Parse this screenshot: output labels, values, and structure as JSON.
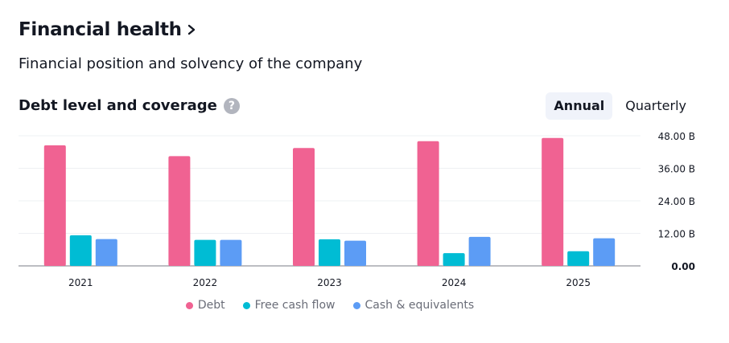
{
  "header": {
    "title": "Financial health"
  },
  "subtitle": "Financial position and solvency of the company",
  "section": {
    "title": "Debt level and coverage",
    "help_glyph": "?"
  },
  "tabs": [
    {
      "label": "Annual",
      "active": true
    },
    {
      "label": "Quarterly",
      "active": false
    }
  ],
  "chart_data": {
    "type": "bar",
    "categories": [
      "2021",
      "2022",
      "2023",
      "2024",
      "2025"
    ],
    "series": [
      {
        "name": "Debt",
        "color": "#f06292",
        "values": [
          44.5,
          40.5,
          43.5,
          46.0,
          47.2
        ]
      },
      {
        "name": "Free cash flow",
        "color": "#00bcd4",
        "values": [
          11.3,
          9.6,
          9.8,
          4.7,
          5.4
        ]
      },
      {
        "name": "Cash & equivalents",
        "color": "#5c9cf5",
        "values": [
          9.9,
          9.6,
          9.3,
          10.7,
          10.2
        ]
      }
    ],
    "y_ticks": [
      {
        "value": 48,
        "label": "48.00 B"
      },
      {
        "value": 36,
        "label": "36.00 B"
      },
      {
        "value": 24,
        "label": "24.00 B"
      },
      {
        "value": 12,
        "label": "12.00 B"
      },
      {
        "value": 0,
        "label": "0.00"
      }
    ],
    "ylim": [
      0,
      48
    ],
    "grid": true,
    "legend_position": "bottom-center"
  }
}
